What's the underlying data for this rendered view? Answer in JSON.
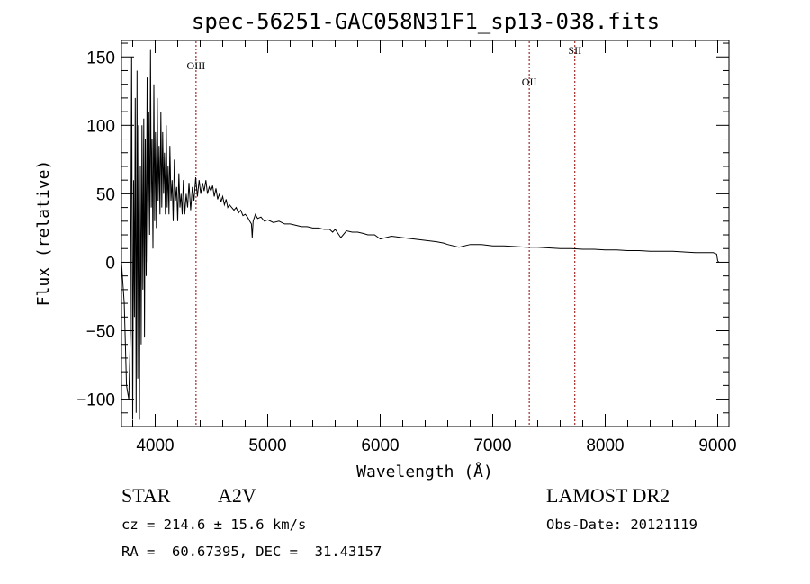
{
  "chart_data": {
    "type": "line",
    "title": "spec-56251-GAC058N31F1_sp13-038.fits",
    "xlabel": "Wavelength (Å)",
    "ylabel": "Flux (relative)",
    "xlim": [
      3700,
      9100
    ],
    "ylim": [
      -120,
      162
    ],
    "xticks": [
      4000,
      5000,
      6000,
      7000,
      8000,
      9000
    ],
    "xtick_labels": [
      "4000",
      "5000",
      "6000",
      "7000",
      "8000",
      "9000"
    ],
    "yticks": [
      -100,
      -50,
      0,
      50,
      100,
      150
    ],
    "ytick_labels": [
      "−100",
      "−50",
      "0",
      "50",
      "100",
      "150"
    ],
    "grid": false,
    "line_color": "#000000",
    "marker_color": "#8b0000",
    "series": [
      {
        "x": [
          3700,
          3725,
          3745,
          3765,
          3780,
          3790,
          3800,
          3808,
          3815,
          3822,
          3830,
          3838,
          3845,
          3852,
          3860,
          3868,
          3875,
          3882,
          3890,
          3898,
          3905,
          3912,
          3920,
          3928,
          3935,
          3942,
          3950,
          3958,
          3965,
          3972,
          3980,
          3988,
          3995,
          4002,
          4010,
          4018,
          4026,
          4034,
          4042,
          4050,
          4058,
          4066,
          4074,
          4082,
          4090,
          4098,
          4106,
          4114,
          4122,
          4130,
          4140,
          4150,
          4160,
          4170,
          4180,
          4190,
          4200,
          4210,
          4220,
          4230,
          4240,
          4250,
          4262,
          4275,
          4288,
          4300,
          4315,
          4330,
          4345,
          4360,
          4375,
          4390,
          4405,
          4420,
          4435,
          4450,
          4465,
          4480,
          4495,
          4510,
          4525,
          4540,
          4555,
          4570,
          4585,
          4600,
          4615,
          4630,
          4645,
          4660,
          4680,
          4700,
          4720,
          4740,
          4760,
          4780,
          4800,
          4820,
          4840,
          4855,
          4862,
          4870,
          4890,
          4910,
          4940,
          4970,
          5000,
          5050,
          5100,
          5150,
          5200,
          5250,
          5300,
          5350,
          5400,
          5450,
          5500,
          5550,
          5577,
          5600,
          5650,
          5700,
          5750,
          5800,
          5850,
          5890,
          5950,
          6000,
          6100,
          6200,
          6300,
          6400,
          6500,
          6563,
          6600,
          6700,
          6800,
          6900,
          7000,
          7100,
          7200,
          7300,
          7400,
          7500,
          7600,
          7700,
          7800,
          7900,
          8000,
          8100,
          8200,
          8300,
          8400,
          8500,
          8600,
          8700,
          8800,
          8900,
          8960,
          8990,
          9000,
          9010
        ],
        "y": [
          0,
          -30,
          -90,
          -100,
          -50,
          150,
          -115,
          60,
          -40,
          120,
          -110,
          140,
          -85,
          100,
          -115,
          70,
          -60,
          100,
          -20,
          105,
          -55,
          90,
          -10,
          135,
          0,
          110,
          20,
          155,
          40,
          90,
          10,
          130,
          30,
          95,
          25,
          120,
          45,
          85,
          35,
          110,
          40,
          95,
          50,
          80,
          35,
          100,
          40,
          70,
          35,
          85,
          45,
          60,
          30,
          75,
          45,
          55,
          30,
          65,
          40,
          50,
          35,
          60,
          35,
          50,
          40,
          58,
          38,
          55,
          45,
          62,
          48,
          60,
          50,
          58,
          52,
          60,
          50,
          55,
          52,
          56,
          48,
          54,
          46,
          50,
          44,
          48,
          42,
          46,
          40,
          42,
          40,
          38,
          40,
          36,
          38,
          34,
          35,
          33,
          30,
          28,
          18,
          30,
          35,
          32,
          33,
          30,
          31,
          29,
          30,
          28,
          28,
          27,
          26,
          26,
          25,
          25,
          24,
          24,
          22,
          24,
          18,
          23,
          22,
          22,
          21,
          20,
          20,
          17,
          19,
          18,
          17,
          16,
          15,
          14,
          13,
          11,
          13,
          13,
          12,
          12,
          11.5,
          11,
          11,
          10.5,
          10,
          10,
          9.5,
          9.5,
          9,
          9,
          8.5,
          8.5,
          8,
          8,
          8,
          7.5,
          7,
          7,
          7,
          6,
          1,
          0
        ]
      }
    ],
    "lines": [
      {
        "label": "OIII",
        "x": 4363
      },
      {
        "label": "OII",
        "x": 7325
      },
      {
        "label": "SII",
        "x": 7730
      }
    ]
  },
  "info": {
    "class": "STAR",
    "subclass": "A2V",
    "survey": "LAMOST DR2",
    "cz": "cz = 214.6 ± 15.6 km/s",
    "obs_date": "Obs-Date: 20121119",
    "coords": "RA =  60.67395, DEC =  31.43157"
  }
}
